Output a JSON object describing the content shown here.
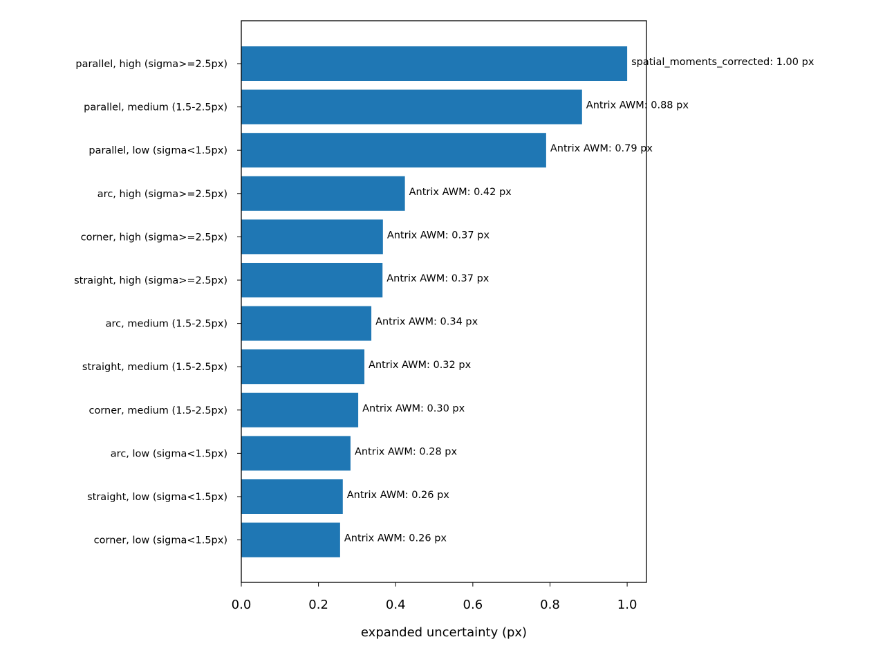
{
  "chart_data": {
    "type": "barh",
    "x_label": "expanded uncertainty (px)",
    "categories": [
      "parallel, high (sigma>=2.5px)",
      "parallel, medium (1.5-2.5px)",
      "parallel, low (sigma<1.5px)",
      "arc, high (sigma>=2.5px)",
      "corner, high (sigma>=2.5px)",
      "straight, high (sigma>=2.5px)",
      "arc, medium (1.5-2.5px)",
      "straight, medium (1.5-2.5px)",
      "corner, medium (1.5-2.5px)",
      "arc, low (sigma<1.5px)",
      "straight, low (sigma<1.5px)",
      "corner, low (sigma<1.5px)"
    ],
    "values": [
      1.0,
      0.883,
      0.79,
      0.424,
      0.367,
      0.366,
      0.337,
      0.319,
      0.303,
      0.283,
      0.263,
      0.256
    ],
    "value_labels": [
      "spatial_moments_corrected: 1.00 px",
      "Antrix AWM: 0.88 px",
      "Antrix AWM: 0.79 px",
      "Antrix AWM: 0.42 px",
      "Antrix AWM: 0.37 px",
      "Antrix AWM: 0.37 px",
      "Antrix AWM: 0.34 px",
      "Antrix AWM: 0.32 px",
      "Antrix AWM: 0.30 px",
      "Antrix AWM: 0.28 px",
      "Antrix AWM: 0.26 px",
      "Antrix AWM: 0.26 px"
    ],
    "color": "#1f77b4",
    "xlim": [
      0,
      1.05
    ],
    "xticks": [
      {
        "value": 0,
        "label": "0.0"
      },
      0.2,
      0.4,
      0.6,
      0.8,
      {
        "value": 1,
        "label": "1.0"
      }
    ]
  }
}
